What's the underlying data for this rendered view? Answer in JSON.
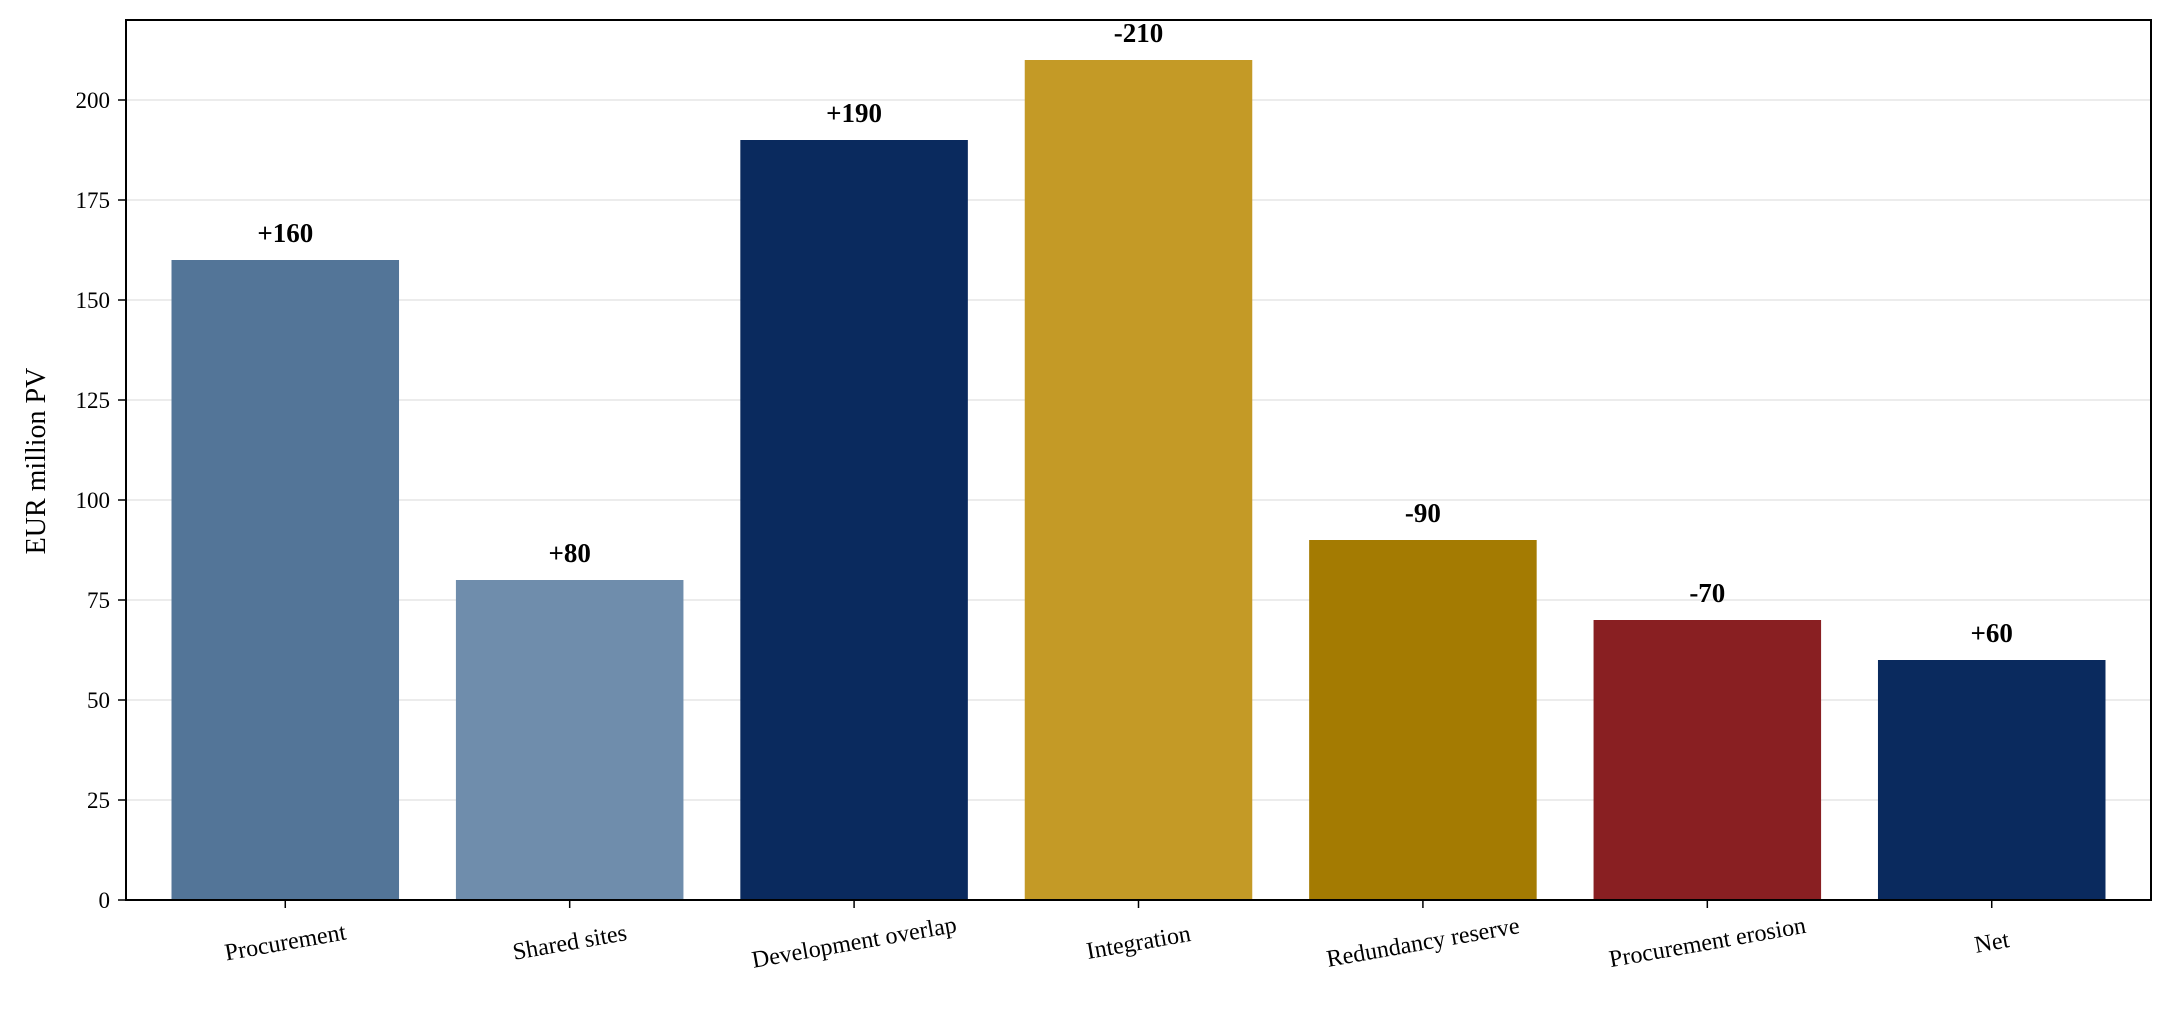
{
  "chart_data": {
    "type": "bar",
    "title": "",
    "xlabel": "",
    "ylabel": "EUR million PV",
    "ylim": [
      0,
      220
    ],
    "yticks": [
      0,
      25,
      50,
      75,
      100,
      125,
      150,
      175,
      200
    ],
    "grid": "horizontal",
    "categories": [
      "Procurement",
      "Shared sites",
      "Development overlap",
      "Integration",
      "Redundancy reserve",
      "Procurement erosion",
      "Net"
    ],
    "values": [
      160,
      80,
      190,
      210,
      90,
      70,
      60
    ],
    "data_labels": [
      "+160",
      "+80",
      "+190",
      "-210",
      "-90",
      "-70",
      "+60"
    ],
    "colors": [
      "#537598",
      "#6f8dac",
      "#0a2a5e",
      "#c49a26",
      "#a47b02",
      "#891f22",
      "#0a2a5e"
    ]
  }
}
